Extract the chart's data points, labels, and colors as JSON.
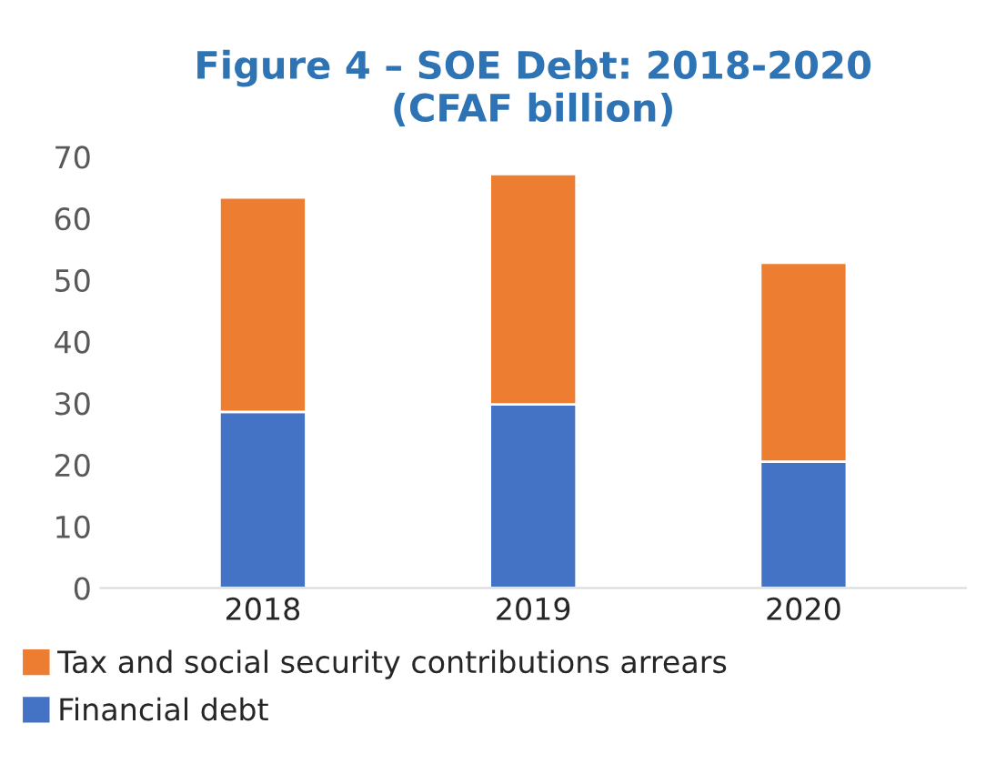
{
  "chart_data": {
    "type": "bar",
    "title": "Figure 4 – SOE Debt: 2018-2020\n(CFAF billion)",
    "categories": [
      "2018",
      "2019",
      "2020"
    ],
    "stacked": true,
    "series": [
      {
        "name": "Financial debt",
        "color": "#4472c4",
        "values": [
          28.6,
          29.8,
          20.5
        ]
      },
      {
        "name": "Tax and social security contributions arrears",
        "color": "#ed7d31",
        "values": [
          34.8,
          37.4,
          32.3
        ]
      }
    ],
    "ylim": [
      0,
      70
    ],
    "yticks": [
      0,
      10,
      20,
      30,
      40,
      50,
      60,
      70
    ],
    "grid": false,
    "legend": "bottom"
  }
}
